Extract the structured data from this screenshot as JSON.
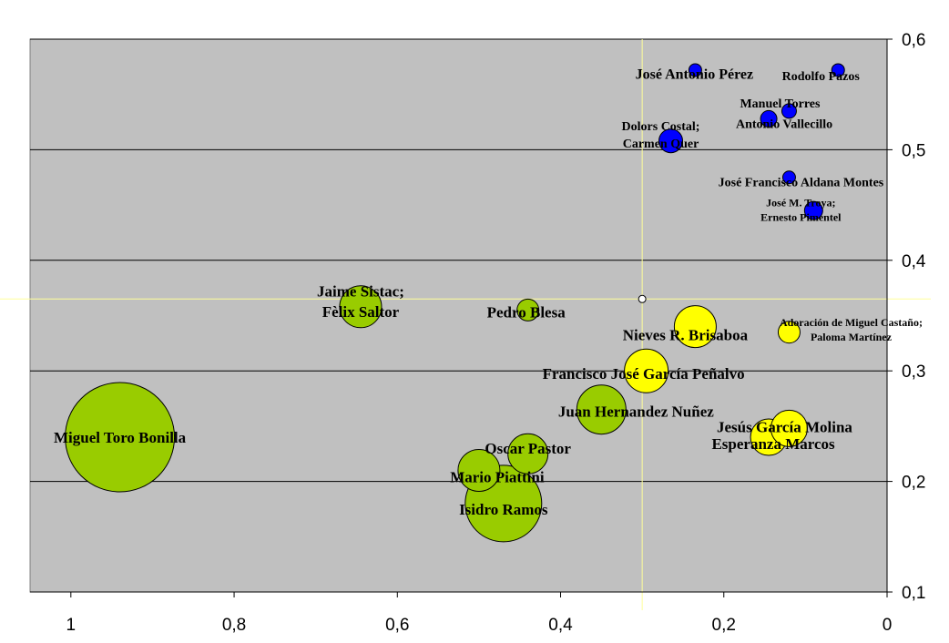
{
  "chart_data": {
    "type": "bubble",
    "xlim": [
      1.05,
      0
    ],
    "ylim": [
      0.1,
      0.6
    ],
    "x_axis_reversed": true,
    "x_ticks": [
      "1",
      "0,8",
      "0,6",
      "0,4",
      "0,2",
      "0"
    ],
    "y_ticks": [
      "0,6",
      "0,5",
      "0,4",
      "0,3",
      "0,2",
      "0,1"
    ],
    "gridlines": "horizontal",
    "plot_background": "#c0c0c0",
    "crosshair": {
      "x": 0.3,
      "y": 0.365,
      "color": "#ffff99"
    },
    "colors": {
      "green": "#99cc00",
      "yellow": "#ffff00",
      "blue": "#0000ff"
    },
    "points": [
      {
        "x": 0.94,
        "y": 0.24,
        "size": 60,
        "color": "green",
        "label": [
          "Miguel Toro Bonilla"
        ]
      },
      {
        "x": 0.645,
        "y": 0.358,
        "size": 23,
        "color": "green",
        "label": [
          "Jaime Sistac;",
          "Fèlix Saltor"
        ]
      },
      {
        "x": 0.44,
        "y": 0.355,
        "size": 12,
        "color": "green",
        "label": [
          "Pedro Blesa"
        ]
      },
      {
        "x": 0.35,
        "y": 0.265,
        "size": 27,
        "color": "green",
        "label": [
          "Juan Hernandez Nuñez"
        ]
      },
      {
        "x": 0.44,
        "y": 0.225,
        "size": 22,
        "color": "green",
        "label": [
          "Oscar Pastor"
        ]
      },
      {
        "x": 0.5,
        "y": 0.21,
        "size": 23,
        "color": "green",
        "label": [
          "Mario Piattini"
        ]
      },
      {
        "x": 0.47,
        "y": 0.18,
        "size": 42,
        "color": "green",
        "label": [
          "Isidro Ramos"
        ]
      },
      {
        "x": 0.235,
        "y": 0.34,
        "size": 23,
        "color": "yellow",
        "label": [
          "Nieves R. Brisaboa"
        ]
      },
      {
        "x": 0.295,
        "y": 0.3,
        "size": 24,
        "color": "yellow",
        "label": [
          "Francisco José García Peñalvo"
        ]
      },
      {
        "x": 0.12,
        "y": 0.335,
        "size": 12,
        "color": "yellow",
        "label": [
          "Adoración de Miguel Castaño;",
          "Paloma Martínez"
        ]
      },
      {
        "x": 0.145,
        "y": 0.24,
        "size": 20,
        "color": "yellow",
        "label": [
          "Esperanza Marcos"
        ]
      },
      {
        "x": 0.12,
        "y": 0.248,
        "size": 20,
        "color": "yellow",
        "label": [
          "Jesús García Molina"
        ]
      },
      {
        "x": 0.3,
        "y": 0.365,
        "size": 4,
        "color": "yellow",
        "label": []
      },
      {
        "x": 0.235,
        "y": 0.572,
        "size": 7,
        "color": "blue",
        "label": [
          "José Antonio Pérez"
        ]
      },
      {
        "x": 0.06,
        "y": 0.572,
        "size": 7,
        "color": "blue",
        "label": [
          "Rodolfo Pazos"
        ]
      },
      {
        "x": 0.12,
        "y": 0.535,
        "size": 8,
        "color": "blue",
        "label": [
          "Manuel Torres"
        ]
      },
      {
        "x": 0.145,
        "y": 0.528,
        "size": 9,
        "color": "blue",
        "label": [
          "Antonio Vallecillo"
        ]
      },
      {
        "x": 0.265,
        "y": 0.508,
        "size": 13,
        "color": "blue",
        "label": [
          "Dolors Costal;",
          "Carmen Quer"
        ]
      },
      {
        "x": 0.12,
        "y": 0.475,
        "size": 7,
        "color": "blue",
        "label": [
          "José Francisco Aldana Montes"
        ]
      },
      {
        "x": 0.09,
        "y": 0.445,
        "size": 10,
        "color": "blue",
        "label": [
          "José M. Troya;",
          "Ernesto Pimentel"
        ]
      }
    ]
  }
}
